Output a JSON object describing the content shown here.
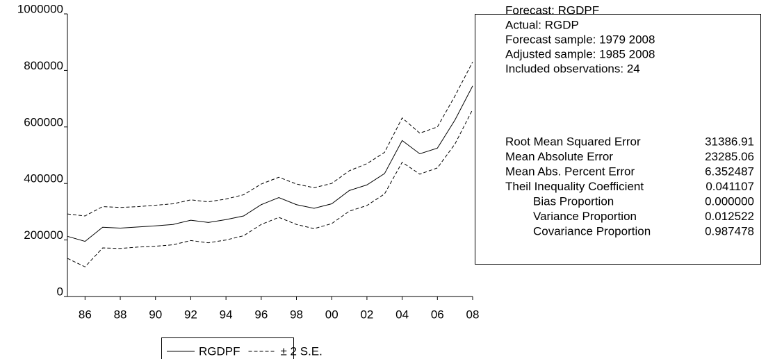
{
  "chart_data": {
    "type": "line",
    "x": [
      1985,
      1986,
      1987,
      1988,
      1989,
      1990,
      1991,
      1992,
      1993,
      1994,
      1995,
      1996,
      1997,
      1998,
      1999,
      2000,
      2001,
      2002,
      2003,
      2004,
      2005,
      2006,
      2007,
      2008
    ],
    "xlim": [
      1985,
      2008
    ],
    "xticks": [
      {
        "value": 1986,
        "label": "86"
      },
      {
        "value": 1988,
        "label": "88"
      },
      {
        "value": 1990,
        "label": "90"
      },
      {
        "value": 1992,
        "label": "92"
      },
      {
        "value": 1994,
        "label": "94"
      },
      {
        "value": 1996,
        "label": "96"
      },
      {
        "value": 1998,
        "label": "98"
      },
      {
        "value": 2000,
        "label": "00"
      },
      {
        "value": 2002,
        "label": "02"
      },
      {
        "value": 2004,
        "label": "04"
      },
      {
        "value": 2006,
        "label": "06"
      },
      {
        "value": 2008,
        "label": "08"
      }
    ],
    "ylim": [
      0,
      1000000
    ],
    "yticks": [
      0,
      200000,
      400000,
      600000,
      800000,
      1000000
    ],
    "series": [
      {
        "name": "RGDPF",
        "color": "#000000",
        "dashed": false,
        "values": [
          213000,
          195000,
          245000,
          242000,
          246000,
          250000,
          255000,
          270000,
          262000,
          272000,
          285000,
          325000,
          350000,
          325000,
          312000,
          328000,
          375000,
          395000,
          435000,
          552000,
          505000,
          525000,
          625000,
          745000
        ]
      },
      {
        "name": "± 2 S.E.",
        "color": "#000000",
        "dashed": true,
        "values": [
          292000,
          285000,
          318000,
          315000,
          318000,
          323000,
          328000,
          342000,
          335000,
          345000,
          360000,
          398000,
          422000,
          398000,
          385000,
          400000,
          445000,
          470000,
          510000,
          632000,
          578000,
          600000,
          710000,
          830000
        ],
        "lower": [
          135000,
          105000,
          172000,
          170000,
          175000,
          178000,
          183000,
          198000,
          190000,
          200000,
          215000,
          255000,
          280000,
          255000,
          240000,
          258000,
          302000,
          322000,
          363000,
          475000,
          433000,
          455000,
          540000,
          662000
        ]
      }
    ],
    "stats_box": {
      "lines": [
        "Forecast: RGDPF",
        "Actual: RGDP",
        "Forecast sample: 1979 2008",
        "Adjusted sample: 1985 2008",
        "Included observations: 24"
      ],
      "stats": [
        {
          "label": "Root Mean Squared Error",
          "value": "31386.91",
          "indent": false
        },
        {
          "label": "Mean Absolute Error",
          "value": "23285.06",
          "indent": false
        },
        {
          "label": "Mean Abs. Percent Error",
          "value": "6.352487",
          "indent": false
        },
        {
          "label": "Theil Inequality Coefficient",
          "value": "0.041107",
          "indent": false
        },
        {
          "label": "Bias Proportion",
          "value": "0.000000",
          "indent": true
        },
        {
          "label": "Variance Proportion",
          "value": "0.012522",
          "indent": true
        },
        {
          "label": "Covariance Proportion",
          "value": "0.987478",
          "indent": true
        }
      ]
    }
  }
}
